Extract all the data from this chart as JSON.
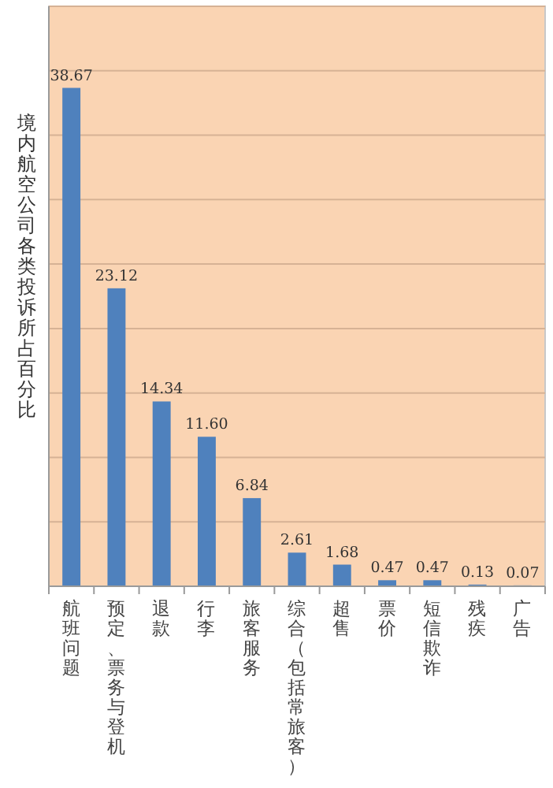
{
  "chart_data": {
    "type": "bar",
    "ylabel": "境内航空公司各类投诉所占百分比",
    "categories": [
      "航班问题",
      "预定、票务与登机",
      "退款",
      "行李",
      "旅客服务",
      "综合（包括常旅客）",
      "超售",
      "票价",
      "短信欺诈",
      "残疾",
      "广告"
    ],
    "values": [
      38.67,
      23.12,
      14.34,
      11.6,
      6.84,
      2.61,
      1.68,
      0.47,
      0.47,
      0.13,
      0.07
    ],
    "value_labels": [
      "38.67",
      "23.12",
      "14.34",
      "11.60",
      "6.84",
      "2.61",
      "1.68",
      "0.47",
      "0.47",
      "0.13",
      "0.07"
    ],
    "color": "#4f81bd",
    "ylim": [
      0,
      45
    ],
    "yticks": [
      {
        "value": 0,
        "label": null
      },
      {
        "value": 5,
        "label": null
      },
      {
        "value": 10,
        "label": null
      },
      {
        "value": 15,
        "label": null
      },
      {
        "value": 20,
        "label": null
      },
      {
        "value": 25,
        "label": null
      },
      {
        "value": 30,
        "label": null
      },
      {
        "value": 35,
        "label": null
      },
      {
        "value": 40,
        "label": null
      },
      {
        "value": 45,
        "label": null
      }
    ],
    "grid": "y"
  }
}
